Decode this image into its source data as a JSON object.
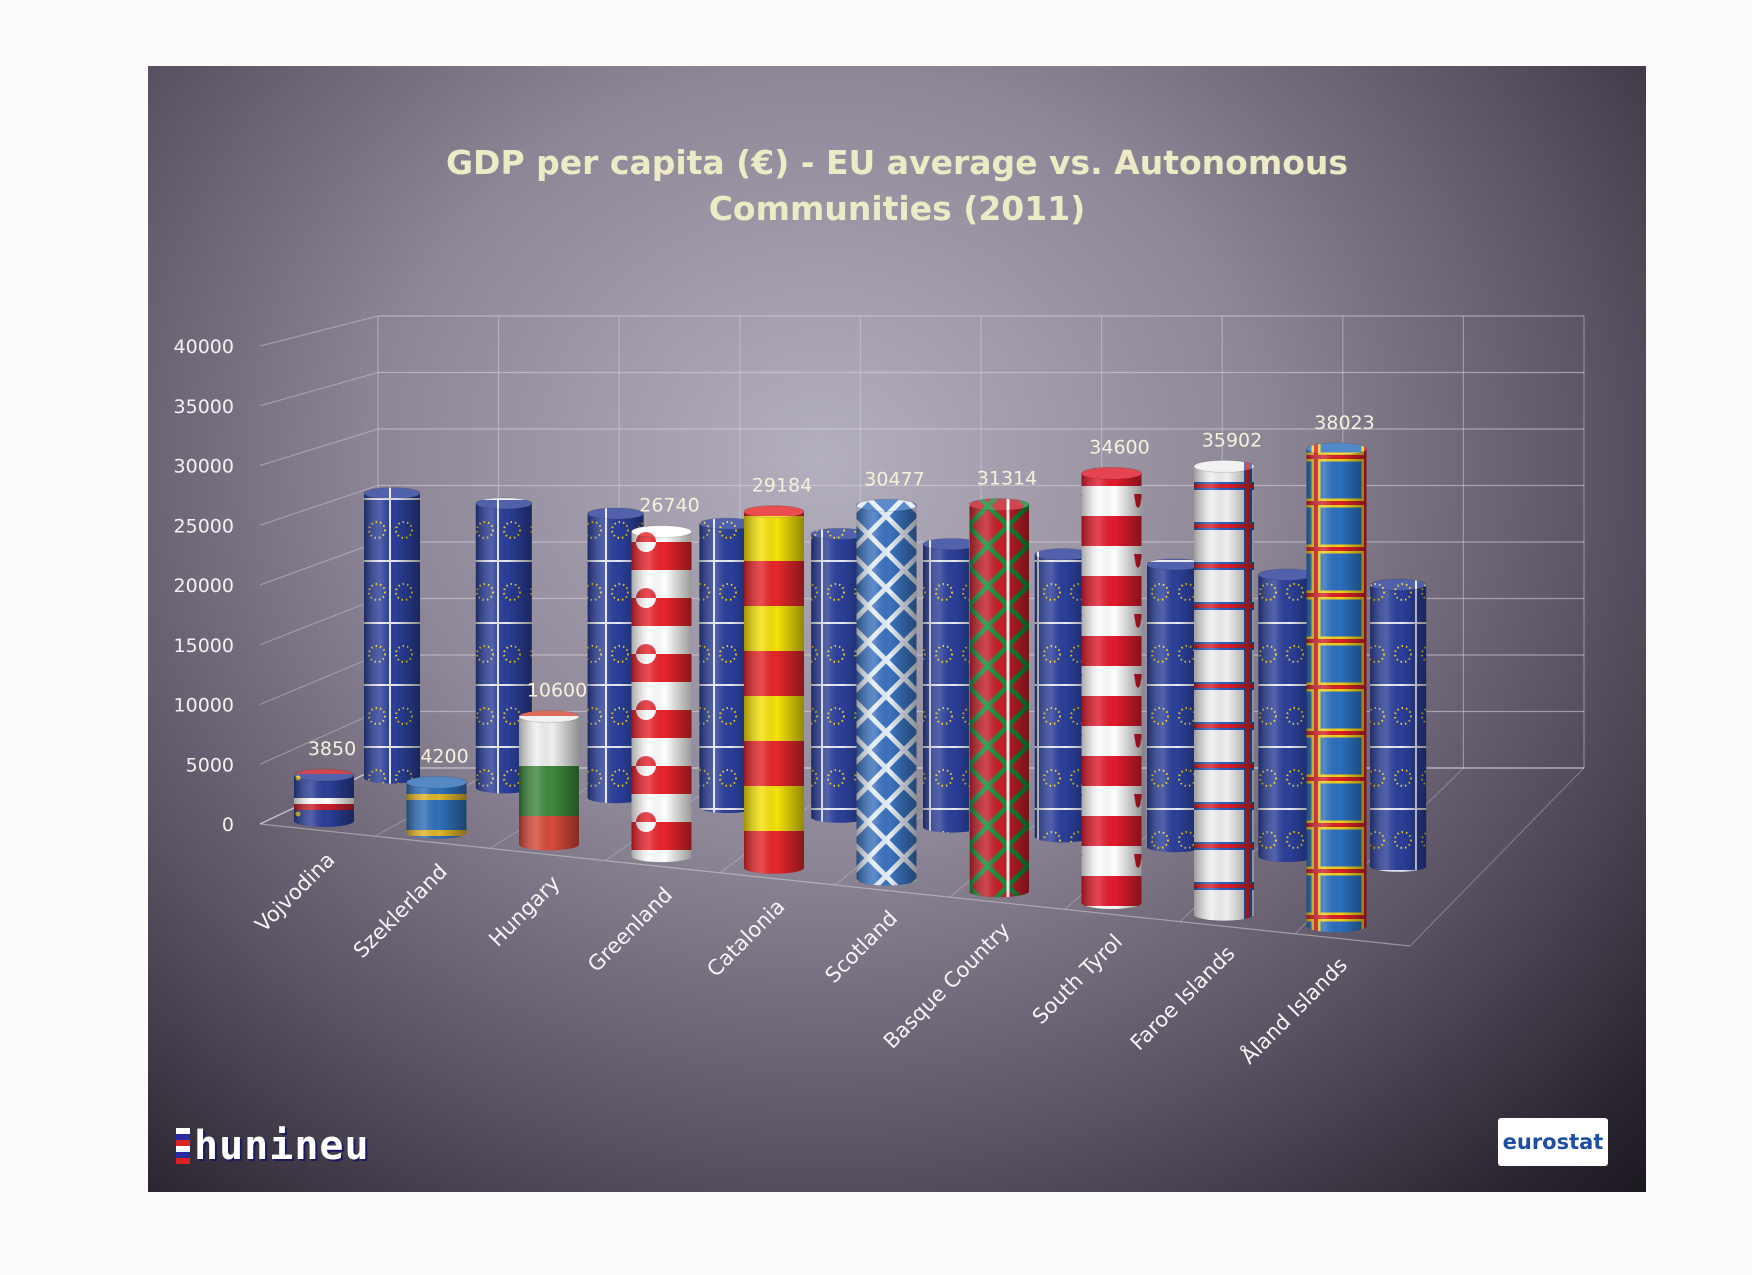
{
  "chart_data": {
    "type": "bar",
    "title_lines": [
      "GDP per capita (€) - EU average vs. Autonomous",
      "Communities (2011)"
    ],
    "categories": [
      "Vojvodina",
      "Szeklerland",
      "Hungary",
      "Greenland",
      "Catalonia",
      "Scotland",
      "Basque Country",
      "South Tyrol",
      "Faroe Islands",
      "Åland Islands"
    ],
    "series": [
      {
        "values": [
          3850,
          4200,
          10600,
          26740,
          29184,
          30477,
          31314,
          34600,
          35902,
          38023
        ]
      },
      {
        "values": [
          24600,
          24600,
          24600,
          24600,
          24600,
          24600,
          24600,
          24600,
          24600,
          24600
        ]
      }
    ],
    "data_labels": [
      "3850",
      "4200",
      "10600",
      "26740",
      "29184",
      "30477",
      "31314",
      "34600",
      "35902",
      "38023"
    ],
    "yticks": [
      "0",
      "5000",
      "10000",
      "15000",
      "20000",
      "25000",
      "30000",
      "35000",
      "40000"
    ],
    "ylim": [
      0,
      40000
    ],
    "grid": true,
    "colors": {
      "eu": "#2b3f9a",
      "countries": [
        "#2b3f9a",
        "#2f70b8",
        "#d84a3a",
        "#e8232b",
        "#f5e20a",
        "#3b73c0",
        "#c41e2a",
        "#e21b2d",
        "#f0f0f0",
        "#2c6fbe"
      ]
    }
  },
  "logos": {
    "left": "hunineu",
    "right": "eurostat"
  }
}
